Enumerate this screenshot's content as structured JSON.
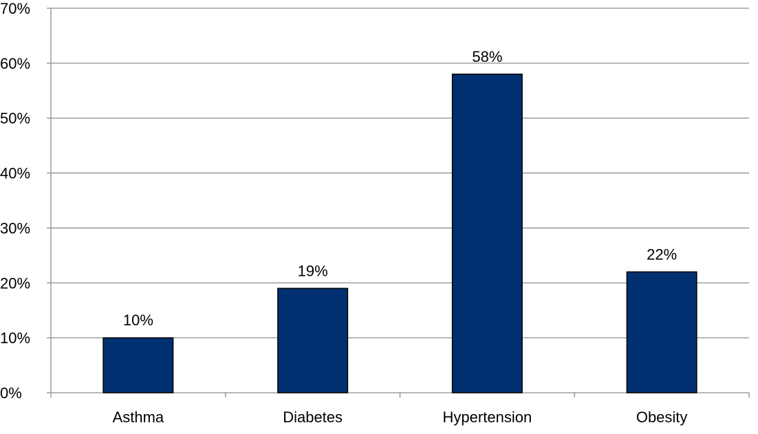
{
  "chart_data": {
    "type": "bar",
    "categories": [
      "Asthma",
      "Diabetes",
      "Hypertension",
      "Obesity"
    ],
    "values": [
      10,
      19,
      58,
      22
    ],
    "data_labels": [
      "10%",
      "19%",
      "58%",
      "22%"
    ],
    "y_tick_values": [
      0,
      10,
      20,
      30,
      40,
      50,
      60,
      70
    ],
    "y_tick_labels": [
      "0%",
      "10%",
      "20%",
      "30%",
      "40%",
      "50%",
      "60%",
      "70%"
    ],
    "ylim": [
      0,
      70
    ],
    "title": "",
    "xlabel": "",
    "ylabel": "",
    "grid": true,
    "legend": "none",
    "bar_color": "#003070",
    "bar_edge_color": "#000000",
    "grid_color": "#8c8c8c"
  }
}
